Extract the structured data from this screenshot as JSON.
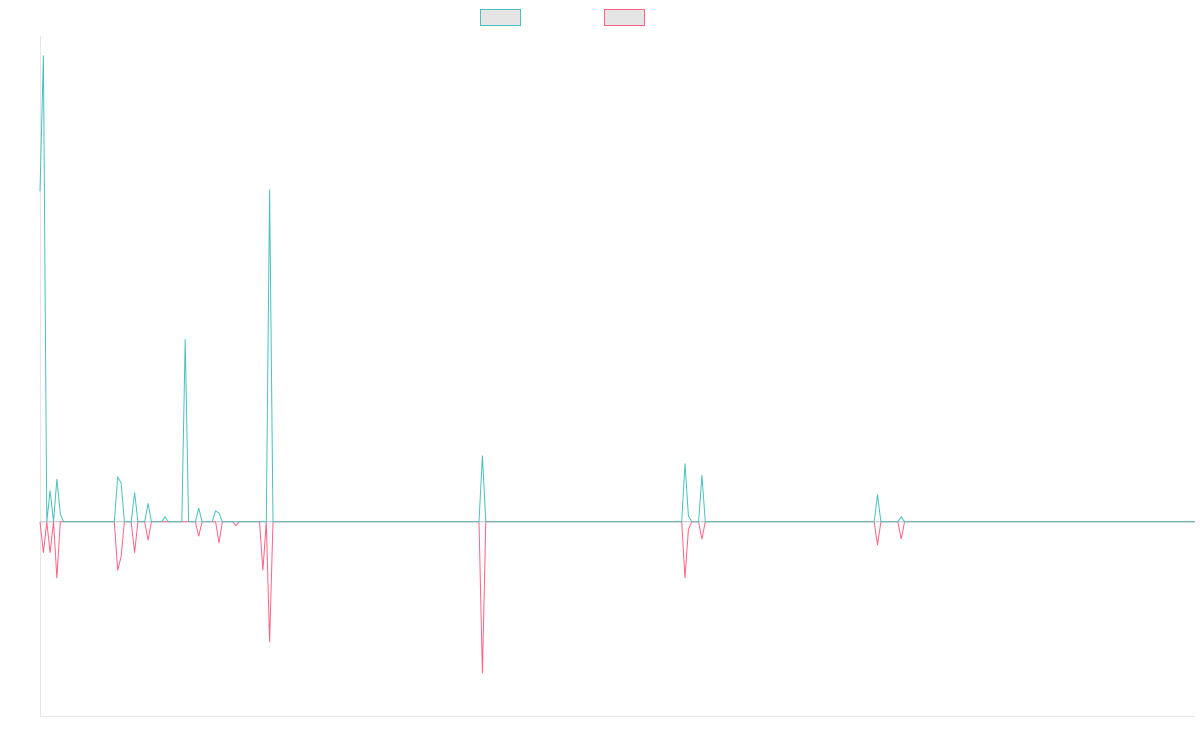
{
  "chart_data": {
    "type": "line",
    "title": "",
    "xlabel": "",
    "ylabel": "",
    "grid": false,
    "legend_position": "top",
    "x_range": [
      0,
      342
    ],
    "ylim": [
      -1000,
      2500
    ],
    "series": [
      {
        "name": "",
        "color": "#4bc0c0",
        "legend_fill": "#e5e5e5",
        "points": [
          [
            0,
            1700
          ],
          [
            1,
            2400
          ],
          [
            2,
            0
          ],
          [
            3,
            160
          ],
          [
            4,
            0
          ],
          [
            5,
            220
          ],
          [
            6,
            40
          ],
          [
            7,
            0
          ],
          [
            22,
            0
          ],
          [
            23,
            230
          ],
          [
            24,
            200
          ],
          [
            25,
            0
          ],
          [
            27,
            0
          ],
          [
            28,
            150
          ],
          [
            29,
            0
          ],
          [
            31,
            0
          ],
          [
            32,
            95
          ],
          [
            33,
            0
          ],
          [
            36,
            0
          ],
          [
            37,
            25
          ],
          [
            38,
            0
          ],
          [
            42,
            0
          ],
          [
            43,
            940
          ],
          [
            44,
            0
          ],
          [
            46,
            0
          ],
          [
            47,
            70
          ],
          [
            48,
            0
          ],
          [
            51,
            0
          ],
          [
            52,
            55
          ],
          [
            53,
            45
          ],
          [
            54,
            0
          ],
          [
            67,
            0
          ],
          [
            68,
            1710
          ],
          [
            69,
            0
          ],
          [
            130,
            0
          ],
          [
            131,
            340
          ],
          [
            132,
            0
          ],
          [
            190,
            0
          ],
          [
            191,
            300
          ],
          [
            192,
            30
          ],
          [
            193,
            0
          ],
          [
            195,
            0
          ],
          [
            196,
            240
          ],
          [
            197,
            0
          ],
          [
            247,
            0
          ],
          [
            248,
            140
          ],
          [
            249,
            0
          ],
          [
            254,
            0
          ],
          [
            255,
            25
          ],
          [
            256,
            0
          ],
          [
            342,
            0
          ]
        ]
      },
      {
        "name": "",
        "color": "#ff6384",
        "legend_fill": "#e5e5e5",
        "points": [
          [
            0,
            0
          ],
          [
            1,
            -160
          ],
          [
            2,
            0
          ],
          [
            3,
            -160
          ],
          [
            4,
            0
          ],
          [
            5,
            -290
          ],
          [
            6,
            0
          ],
          [
            22,
            0
          ],
          [
            23,
            -250
          ],
          [
            24,
            -180
          ],
          [
            25,
            0
          ],
          [
            27,
            0
          ],
          [
            28,
            -160
          ],
          [
            29,
            0
          ],
          [
            31,
            0
          ],
          [
            32,
            -95
          ],
          [
            33,
            0
          ],
          [
            46,
            0
          ],
          [
            47,
            -75
          ],
          [
            48,
            0
          ],
          [
            52,
            0
          ],
          [
            53,
            -110
          ],
          [
            54,
            0
          ],
          [
            57,
            0
          ],
          [
            58,
            -20
          ],
          [
            59,
            0
          ],
          [
            65,
            0
          ],
          [
            66,
            -250
          ],
          [
            67,
            0
          ],
          [
            68,
            -620
          ],
          [
            69,
            0
          ],
          [
            130,
            0
          ],
          [
            131,
            -780
          ],
          [
            132,
            0
          ],
          [
            190,
            0
          ],
          [
            191,
            -290
          ],
          [
            192,
            -40
          ],
          [
            193,
            0
          ],
          [
            195,
            0
          ],
          [
            196,
            -90
          ],
          [
            197,
            0
          ],
          [
            247,
            0
          ],
          [
            248,
            -120
          ],
          [
            249,
            0
          ],
          [
            254,
            0
          ],
          [
            255,
            -90
          ],
          [
            256,
            0
          ],
          [
            342,
            0
          ]
        ]
      }
    ]
  }
}
